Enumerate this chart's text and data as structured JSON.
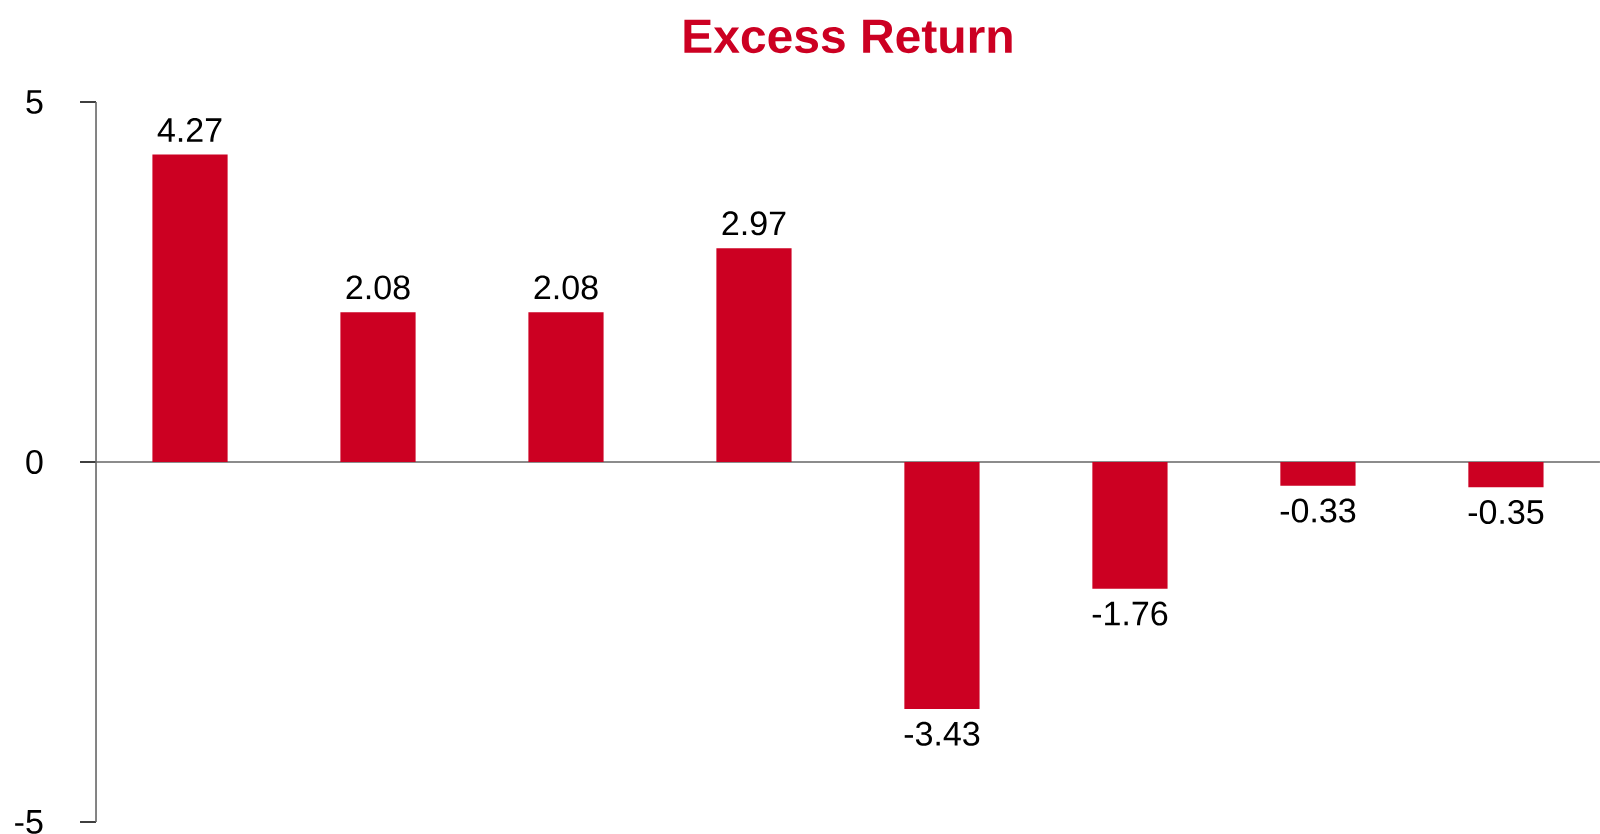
{
  "chart_data": {
    "type": "bar",
    "title": "Excess Return",
    "categories": [
      null,
      null,
      null,
      null,
      null,
      null,
      null,
      null
    ],
    "values": [
      4.27,
      2.08,
      2.08,
      2.97,
      -3.43,
      -1.76,
      -0.33,
      -0.35
    ],
    "color": "#cc0022",
    "ylim": [
      -5,
      5
    ],
    "yticks": [
      -5,
      0,
      5
    ],
    "data_labels": true,
    "tick_labels": "y"
  }
}
